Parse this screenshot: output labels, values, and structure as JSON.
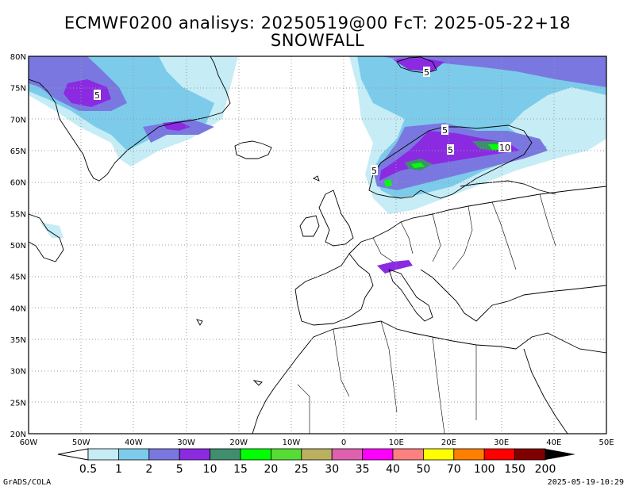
{
  "title_line1": "ECMWF0200 analisys: 20250519@00 FcT: 2025-05-22+18",
  "title_line2": "SNOWFALL",
  "lon_labels": [
    "60W",
    "50W",
    "40W",
    "30W",
    "20W",
    "10W",
    "0",
    "10E",
    "20E",
    "30E",
    "40E",
    "50E"
  ],
  "lat_labels": [
    "80N",
    "75N",
    "70N",
    "65N",
    "60N",
    "55N",
    "50N",
    "45N",
    "40N",
    "35N",
    "30N",
    "25N",
    "20N"
  ],
  "colorbar": {
    "labels": [
      "0.5",
      "1",
      "2",
      "5",
      "10",
      "15",
      "20",
      "25",
      "30",
      "35",
      "40",
      "50",
      "70",
      "100",
      "150",
      "200"
    ],
    "colors": [
      "#c6ecf5",
      "#7ccbea",
      "#7a78e0",
      "#8a2be2",
      "#3f8f6f",
      "#00ff00",
      "#55dd33",
      "#bbb060",
      "#e060b0",
      "#ff00ff",
      "#ff8080",
      "#ffff00",
      "#ff8000",
      "#ff0000",
      "#800000"
    ]
  },
  "contour_labels": [
    "5",
    "5",
    "5",
    "5",
    "5",
    "10"
  ],
  "footer_left": "GrADS/COLA",
  "footer_right": "2025-05-19-10:29"
}
